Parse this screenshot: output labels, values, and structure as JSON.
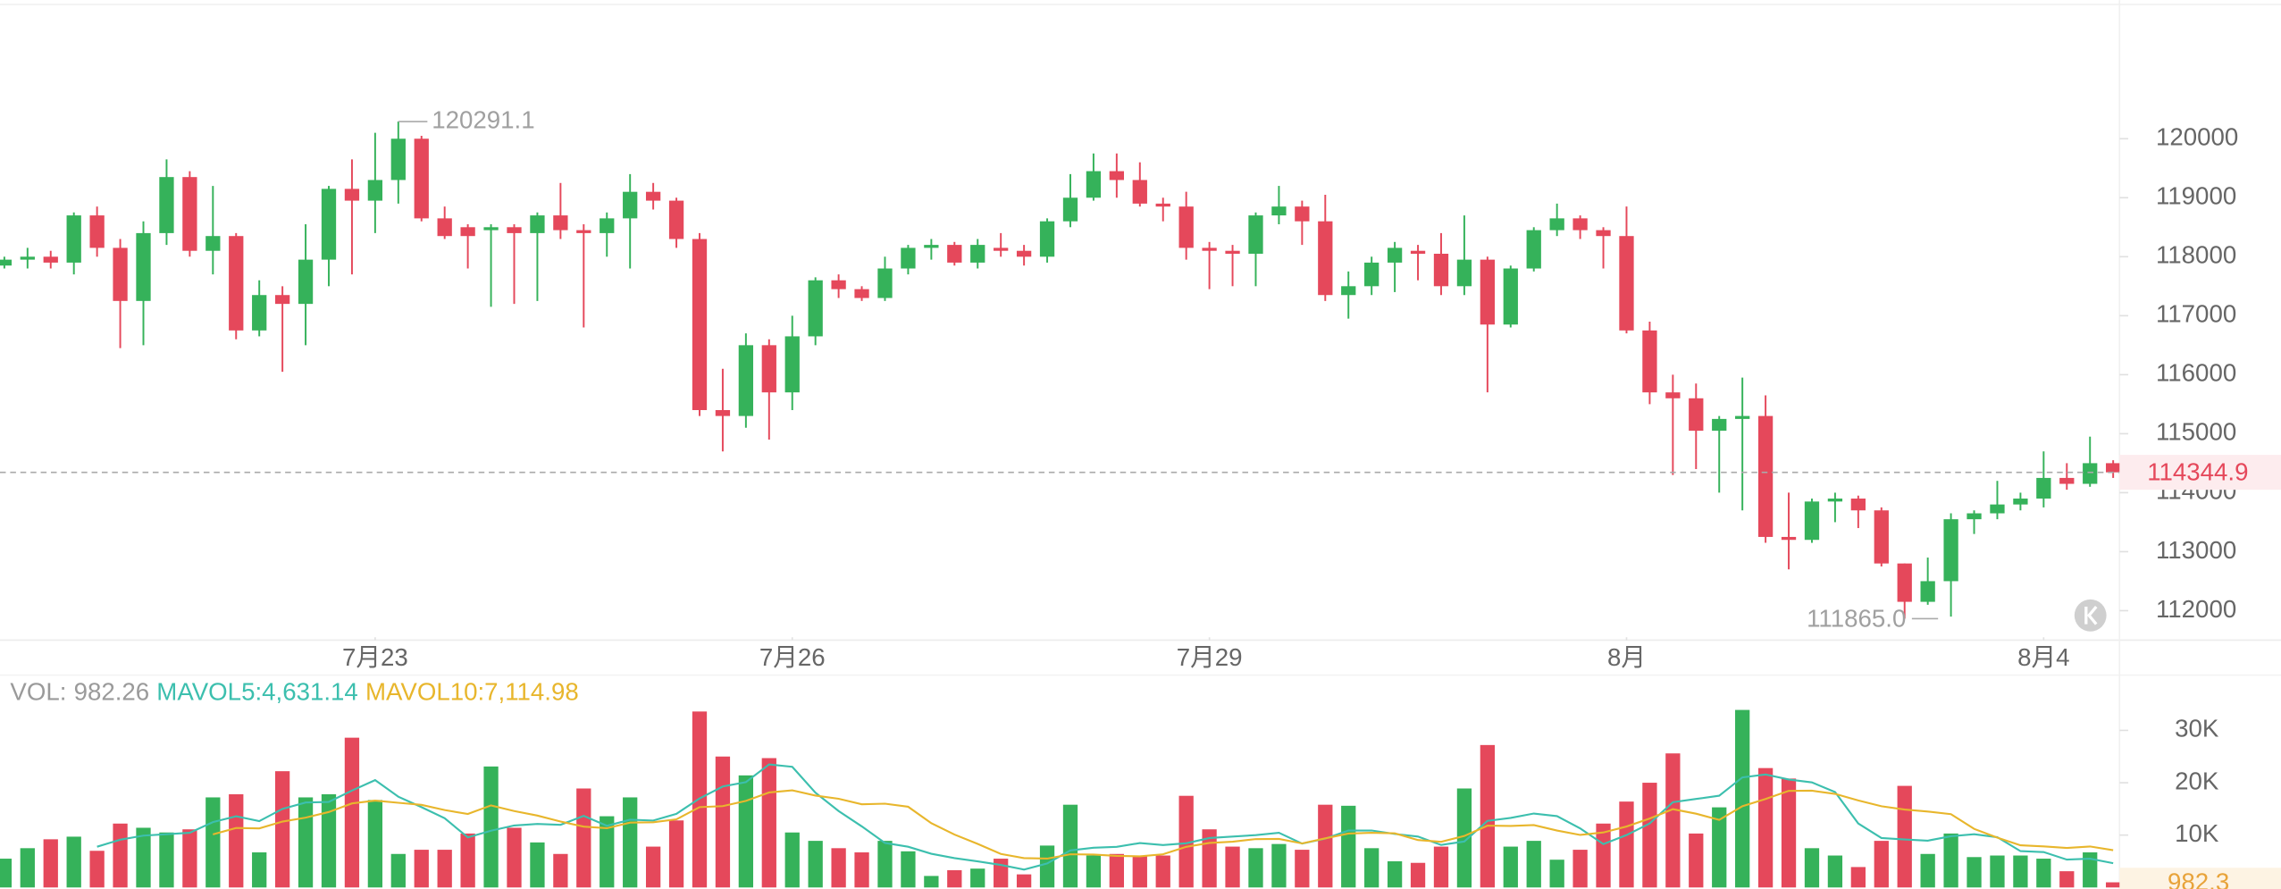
{
  "chart_data": [
    {
      "type": "candlestick",
      "up_color": "#35b25a",
      "down_color": "#e5485b",
      "ylim": [
        111500,
        122350
      ],
      "yticks": [
        112000,
        113000,
        114000,
        115000,
        116000,
        117000,
        118000,
        119000,
        120000
      ],
      "xticks": [
        {
          "value": 16,
          "label": "7月23"
        },
        {
          "value": 34,
          "label": "7月26"
        },
        {
          "value": 52,
          "label": "7月29"
        },
        {
          "value": 70,
          "label": "8月"
        },
        {
          "value": 88,
          "label": "8月4"
        }
      ],
      "high_index": 17,
      "low_index": 82,
      "low_label": "111865.0",
      "open": [
        117850,
        117950,
        118000,
        117900,
        118700,
        118150,
        117250,
        118400,
        119350,
        118100,
        118350,
        116750,
        117350,
        117200,
        117950,
        119150,
        118950,
        119300,
        120000,
        118650,
        118500,
        118450,
        118500,
        118400,
        118700,
        118450,
        118400,
        118650,
        119100,
        118950,
        118300,
        115400,
        115300,
        116500,
        115700,
        116650,
        117600,
        117450,
        117300,
        117800,
        118150,
        118200,
        117900,
        118150,
        118100,
        118000,
        118600,
        119000,
        119450,
        119300,
        118900,
        118850,
        118150,
        118100,
        118050,
        118700,
        118850,
        118600,
        117350,
        117500,
        117900,
        118100,
        118050,
        117500,
        117950,
        116850,
        117800,
        118450,
        118650,
        118450,
        118350,
        116750,
        115700,
        115600,
        115050,
        115250,
        115300,
        113250,
        113200,
        113850,
        113900,
        113700,
        112800,
        112150,
        112500,
        113550,
        113650,
        113800,
        113900,
        114250,
        114150,
        114500
      ],
      "high": [
        118000,
        118150,
        118100,
        118750,
        118850,
        118300,
        118600,
        119650,
        119450,
        119200,
        118400,
        117600,
        117500,
        118550,
        119200,
        119650,
        120100,
        120291.1,
        120050,
        118850,
        118550,
        118550,
        118550,
        118750,
        119250,
        118550,
        118750,
        119400,
        119250,
        119000,
        118400,
        116100,
        116700,
        116600,
        117000,
        117650,
        117700,
        117500,
        118000,
        118200,
        118300,
        118250,
        118300,
        118400,
        118200,
        118650,
        119400,
        119750,
        119750,
        119600,
        119000,
        119100,
        118250,
        118200,
        118750,
        119200,
        118950,
        119050,
        117750,
        118000,
        118250,
        118200,
        118400,
        118700,
        118000,
        117850,
        118500,
        118900,
        118700,
        118500,
        118850,
        116900,
        116000,
        115850,
        115300,
        115950,
        115650,
        114000,
        113900,
        114000,
        113950,
        113750,
        112800,
        112900,
        113650,
        113700,
        114200,
        114000,
        114700,
        114500,
        114950,
        114550
      ],
      "low": [
        117800,
        117800,
        117800,
        117700,
        118000,
        116450,
        116500,
        118200,
        118000,
        117700,
        116600,
        116650,
        116050,
        116500,
        117500,
        117700,
        118400,
        118900,
        118600,
        118300,
        117800,
        117150,
        117200,
        117250,
        118300,
        116800,
        118000,
        117800,
        118800,
        118150,
        115300,
        114700,
        115100,
        114900,
        115400,
        116500,
        117300,
        117250,
        117250,
        117700,
        117950,
        117850,
        117800,
        118000,
        117850,
        117900,
        118500,
        118950,
        119000,
        118850,
        118600,
        117950,
        117450,
        117500,
        117500,
        118550,
        118200,
        117250,
        116950,
        117350,
        117400,
        117600,
        117350,
        117350,
        115700,
        116800,
        117750,
        118350,
        118300,
        117800,
        116700,
        115500,
        114300,
        114400,
        114000,
        113700,
        113150,
        112700,
        113150,
        113500,
        113400,
        112750,
        111865,
        112100,
        111900,
        113300,
        113550,
        113700,
        113750,
        114050,
        114100,
        114250
      ],
      "close": [
        117950,
        118000,
        117900,
        118700,
        118150,
        117250,
        118400,
        119350,
        118100,
        118350,
        116750,
        117350,
        117200,
        117950,
        119150,
        118950,
        119300,
        120000,
        118650,
        118350,
        118350,
        118500,
        118400,
        118700,
        118450,
        118400,
        118650,
        119100,
        118950,
        118300,
        115400,
        115300,
        116500,
        115700,
        116650,
        117600,
        117450,
        117300,
        117800,
        118150,
        118200,
        117900,
        118200,
        118100,
        118000,
        118600,
        119000,
        119450,
        119300,
        118900,
        118850,
        118150,
        118100,
        118050,
        118700,
        118850,
        118600,
        117350,
        117500,
        117900,
        118150,
        118050,
        117500,
        117950,
        116850,
        117800,
        118450,
        118650,
        118450,
        118350,
        116750,
        115700,
        115600,
        115050,
        115250,
        115300,
        113250,
        113200,
        113850,
        113900,
        113700,
        112800,
        112150,
        112500,
        113550,
        113650,
        113800,
        113900,
        114250,
        114150,
        114500,
        114344.9
      ]
    },
    {
      "type": "bar",
      "name": "VOL:",
      "ylim": [
        0,
        40000
      ],
      "yticks": [
        {
          "value": 10000,
          "label": "10K"
        },
        {
          "value": 20000,
          "label": "20K"
        },
        {
          "value": 30000,
          "label": "30K"
        }
      ],
      "current_label": "982.3",
      "values": [
        5500,
        7500,
        9200,
        9700,
        7000,
        12200,
        11400,
        10500,
        11100,
        17200,
        17800,
        6700,
        22200,
        17200,
        17800,
        28600,
        16700,
        6400,
        7200,
        7200,
        10300,
        23100,
        11400,
        8600,
        6400,
        18900,
        13600,
        17200,
        7800,
        12800,
        33600,
        25000,
        21400,
        24700,
        10500,
        8900,
        7500,
        6700,
        8900,
        6900,
        2200,
        3300,
        3600,
        5500,
        2500,
        8000,
        15800,
        6100,
        6400,
        6100,
        6100,
        17500,
        11100,
        7800,
        7500,
        8300,
        7200,
        15800,
        15600,
        7500,
        5000,
        4700,
        7800,
        18900,
        27200,
        7800,
        8900,
        5300,
        7200,
        12200,
        16400,
        20000,
        25600,
        10300,
        15300,
        33900,
        22800,
        20800,
        7500,
        6100,
        3900,
        8900,
        19400,
        6400,
        10300,
        5800,
        6100,
        6100,
        5500,
        3100,
        6700,
        982.26
      ],
      "series": [
        {
          "name": "MAVOL5:",
          "color": "#3cbfae",
          "value_label": "4,631.14",
          "values": [
            null,
            null,
            null,
            null,
            7780,
            9120,
            9900,
            10160,
            10440,
            12480,
            13600,
            12660,
            15000,
            16220,
            16340,
            18500,
            20500,
            17340,
            15340,
            13220,
            9560,
            10840,
            11840,
            12120,
            11960,
            13680,
            11780,
            12940,
            12780,
            14060,
            17000,
            19280,
            20120,
            23500,
            23040,
            18100,
            14600,
            11660,
            8500,
            7780,
            6440,
            5600,
            4980,
            4300,
            3420,
            4580,
            7080,
            7580,
            7760,
            8480,
            8100,
            8440,
            9440,
            9720,
            10000,
            10440,
            8380,
            9320,
            10880,
            10880,
            10220,
            9720,
            8120,
            8780,
            12720,
            13280,
            14120,
            13620,
            11280,
            8280,
            10000,
            12220,
            16280,
            16900,
            17520,
            21020,
            21580,
            20620,
            20060,
            18220,
            12220,
            9440,
            9160,
            8940,
            9780,
            10160,
            9600,
            6940,
            6760,
            5320,
            5500,
            4631.14
          ]
        },
        {
          "name": "MAVOL10:",
          "color": "#e8b62c",
          "value_label": "7,114.98",
          "values": [
            null,
            null,
            null,
            null,
            null,
            null,
            null,
            null,
            null,
            10130,
            11360,
            11280,
            12580,
            13330,
            14410,
            16050,
            16580,
            16170,
            15780,
            14780,
            14030,
            15670,
            14590,
            13730,
            12590,
            11620,
            11310,
            12390,
            12450,
            13010,
            15340,
            15530,
            16530,
            18140,
            18550,
            17550,
            16940,
            15890,
            16000,
            15410,
            12270,
            10100,
            8320,
            6400,
            5600,
            5510,
            6340,
            6280,
            6030,
            5950,
            6340,
            7760,
            8510,
            8740,
            9240,
            9270,
            8410,
            9380,
            10300,
            10440,
            10330,
            9050,
            8720,
            9830,
            11800,
            11750,
            11920,
            10870,
            10030,
            10500,
            11640,
            13170,
            14950,
            14090,
            12900,
            15510,
            16900,
            18450,
            18480,
            17870,
            16620,
            15510,
            14890,
            14500,
            14000,
            11190,
            9520,
            8050,
            7850,
            7550,
            7830,
            7114.98
          ]
        }
      ]
    }
  ]
}
